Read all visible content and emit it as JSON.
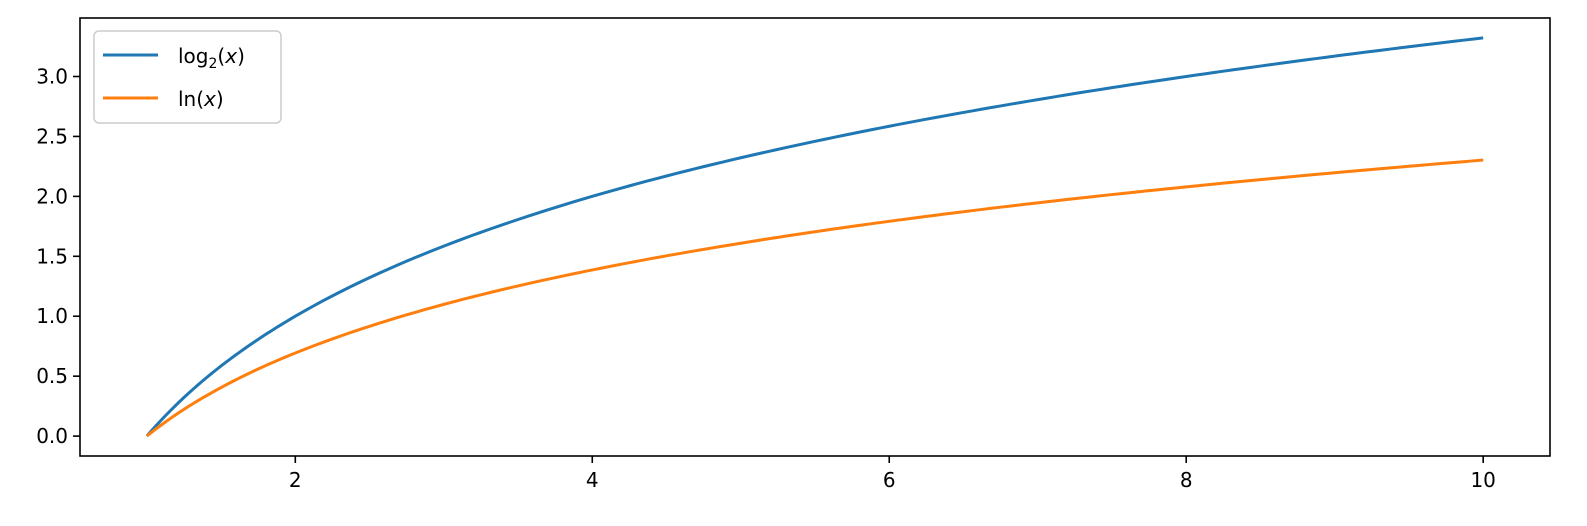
{
  "chart_data": {
    "type": "line",
    "title": "",
    "xlabel": "",
    "ylabel": "",
    "xlim": [
      0.55,
      10.45
    ],
    "ylim": [
      -0.166,
      3.488
    ],
    "x_ticks": [
      2,
      4,
      6,
      8,
      10
    ],
    "x_tick_labels": [
      "2",
      "4",
      "6",
      "8",
      "10"
    ],
    "y_ticks": [
      0.0,
      0.5,
      1.0,
      1.5,
      2.0,
      2.5,
      3.0
    ],
    "y_tick_labels": [
      "0.0",
      "0.5",
      "1.0",
      "1.5",
      "2.0",
      "2.5",
      "3.0"
    ],
    "grid": false,
    "legend_position": "top-left",
    "x": [
      1.0,
      1.25,
      1.5,
      1.75,
      2.0,
      2.5,
      3.0,
      3.5,
      4.0,
      4.5,
      5.0,
      5.5,
      6.0,
      6.5,
      7.0,
      7.5,
      8.0,
      8.5,
      9.0,
      9.5,
      10.0
    ],
    "series": [
      {
        "name": "log2",
        "color": "#1f77b4",
        "values": [
          0.0,
          0.322,
          0.585,
          0.807,
          1.0,
          1.322,
          1.585,
          1.807,
          2.0,
          2.17,
          2.322,
          2.459,
          2.585,
          2.7,
          2.807,
          2.907,
          3.0,
          3.087,
          3.17,
          3.248,
          3.322
        ]
      },
      {
        "name": "ln",
        "color": "#ff7f0e",
        "values": [
          0.0,
          0.223,
          0.405,
          0.56,
          0.693,
          0.916,
          1.099,
          1.253,
          1.386,
          1.504,
          1.609,
          1.705,
          1.792,
          1.872,
          1.946,
          2.015,
          2.079,
          2.14,
          2.197,
          2.251,
          2.303
        ]
      }
    ]
  }
}
